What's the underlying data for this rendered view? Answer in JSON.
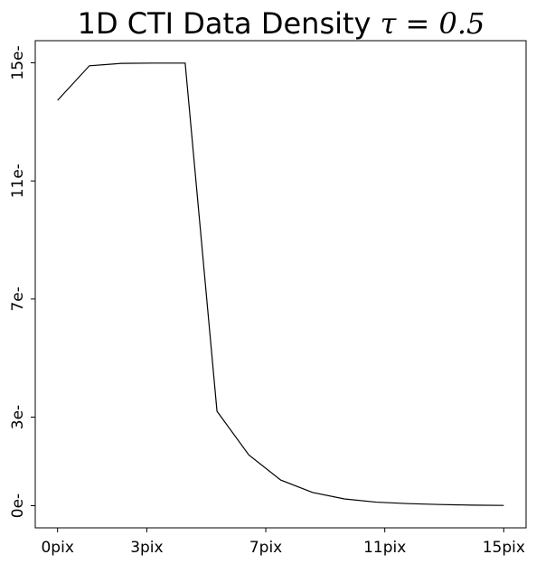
{
  "chart_data": {
    "type": "line",
    "title": "1D CTI Data Density",
    "title_tau": "τ = 0.5",
    "xlabel": "",
    "ylabel": "",
    "x_ticks": [
      0,
      3,
      7,
      11,
      15
    ],
    "x_tick_labels": [
      "0pix",
      "3pix",
      "7pix",
      "11pix",
      "15pix"
    ],
    "y_ticks": [
      0,
      3,
      7,
      11,
      15
    ],
    "y_tick_labels": [
      "0e-",
      "3e-",
      "7e-",
      "11e-",
      "15e-"
    ],
    "xlim": [
      -0.75,
      15.75
    ],
    "ylim": [
      -0.75,
      15.75
    ],
    "grid": false,
    "series": [
      {
        "x": [
          0,
          1.07,
          2.14,
          3.21,
          4.29,
          5.36,
          6.43,
          7.5,
          8.57,
          9.64,
          10.71,
          11.79,
          12.86,
          13.93,
          15
        ],
        "values": [
          13.73,
          14.9,
          14.98,
          14.99,
          14.99,
          3.2,
          1.72,
          0.87,
          0.45,
          0.23,
          0.12,
          0.07,
          0.04,
          0.02,
          0.01
        ]
      }
    ]
  }
}
